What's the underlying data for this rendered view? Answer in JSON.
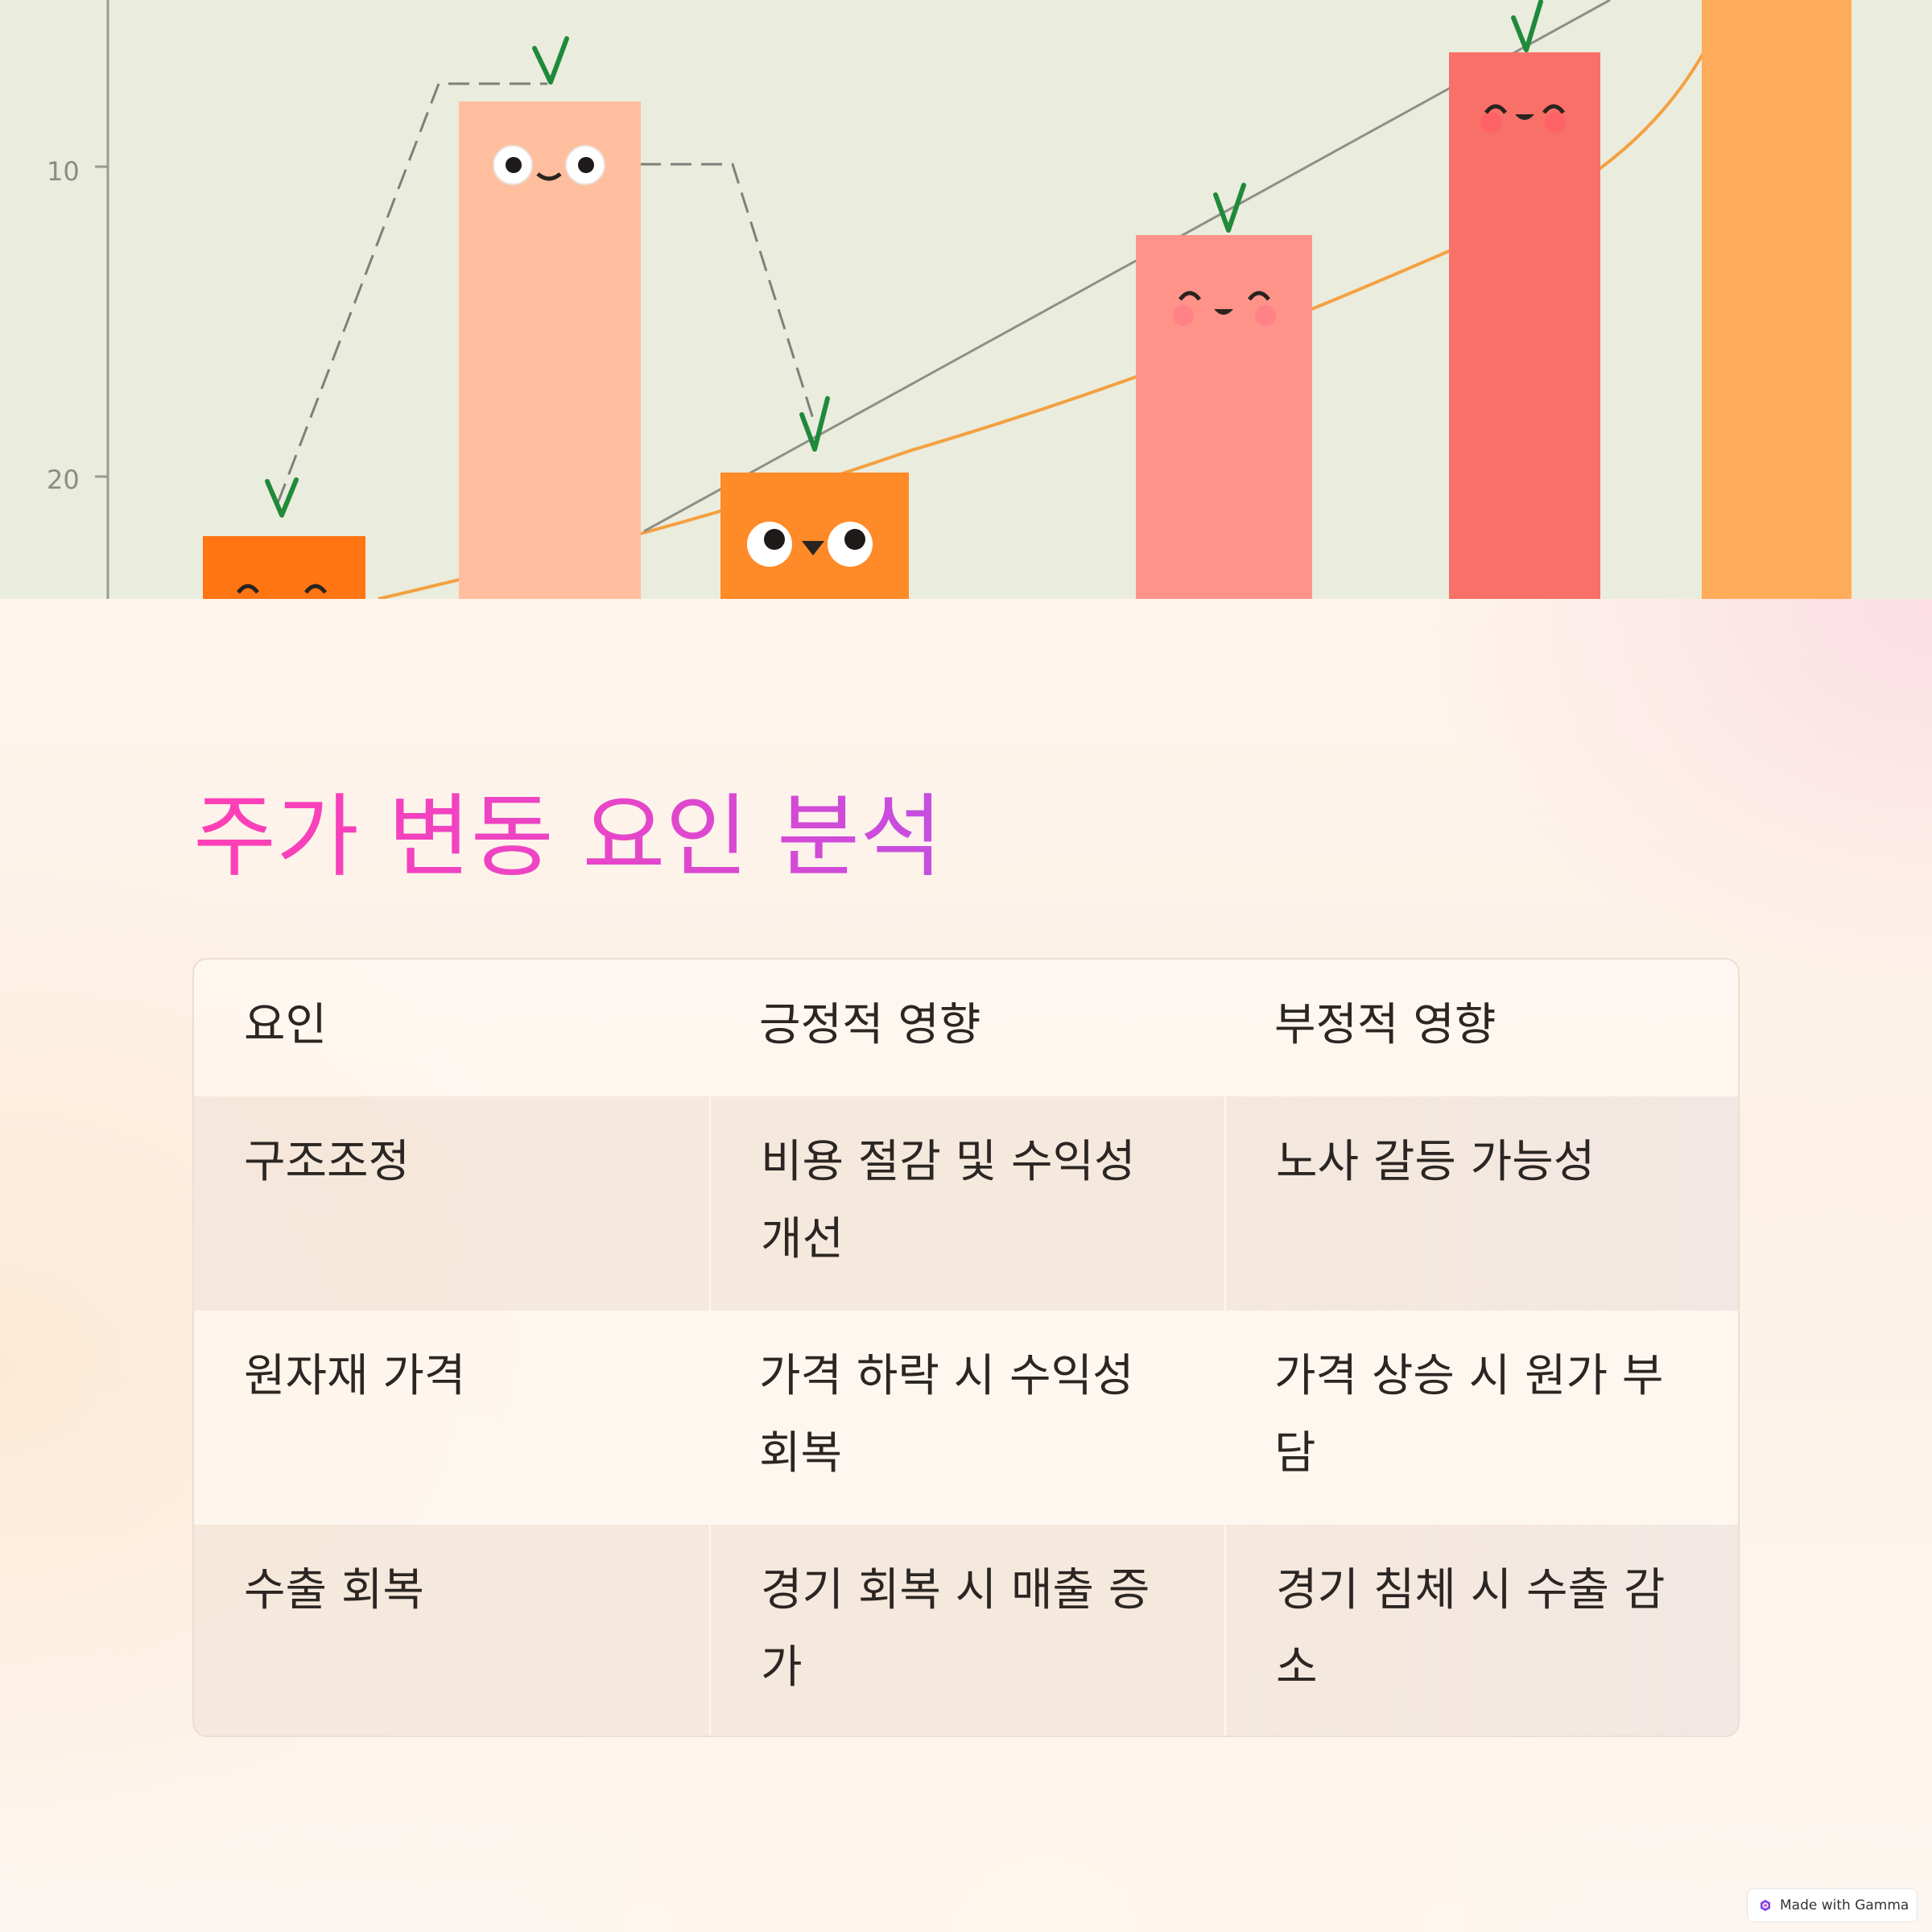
{
  "hero": {
    "axis_ticks": [
      "10",
      "20"
    ],
    "colors": {
      "background": "#eaecdd",
      "bar_deep_orange": "#ff7512",
      "bar_peach": "#ffbf9e",
      "bar_orange": "#ff8a28",
      "bar_salmon": "#ff9389",
      "bar_red": "#f87068",
      "bar_amber": "#ffac5a",
      "sprout": "#1f8a3a"
    },
    "icons": [
      "sprout-icon",
      "face-icon"
    ]
  },
  "title": "주가 변동 요인 분석",
  "table": {
    "headers": [
      "요인",
      "긍정적 영향",
      "부정적 영향"
    ],
    "rows": [
      {
        "factor": "구조조정",
        "positive": [
          "비용 절감 및 수익성",
          "개선"
        ],
        "negative": [
          "노사 갈등 가능성"
        ]
      },
      {
        "factor": "원자재 가격",
        "positive": [
          "가격 하락 시 수익성",
          "회복"
        ],
        "negative": [
          "가격 상승 시 원가 부",
          "담"
        ]
      },
      {
        "factor": "수출 회복",
        "positive": [
          "경기 회복 시 매출 증",
          "가"
        ],
        "negative": [
          "경기 침체 시 수출 감",
          "소"
        ]
      }
    ]
  },
  "badge": {
    "label": "Made with Gamma"
  }
}
